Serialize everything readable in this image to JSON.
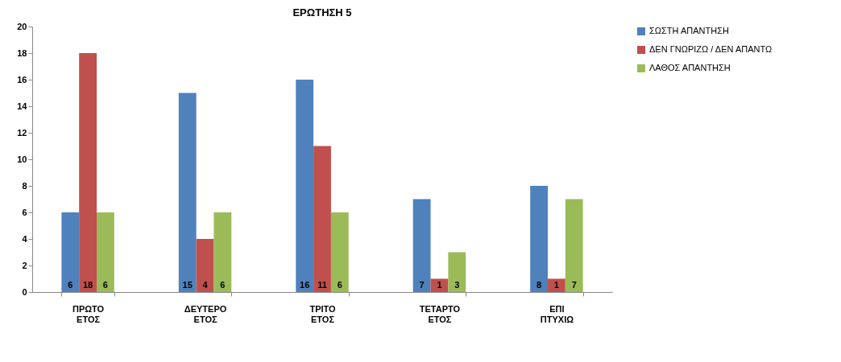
{
  "chart_data": {
    "type": "bar",
    "title": "ΕΡΩΤΗΣΗ 5",
    "categories": [
      "ΠΡΩΤΟ ΕΤΟΣ",
      "ΔΕΥΤΕΡΟ ΕΤΟΣ",
      "ΤΡΙΤΟ ΕΤΟΣ",
      "ΤΕΤΑΡΤΟ ΕΤΟΣ",
      "ΕΠΙ ΠΤΥΧΙΩ"
    ],
    "series": [
      {
        "name": "ΣΩΣΤΗ ΑΠΑΝΤΗΣΗ",
        "color": "#4f81bd",
        "values": [
          6,
          15,
          16,
          7,
          8
        ]
      },
      {
        "name": "ΔΕΝ ΓΝΩΡΙΖΩ / ΔΕΝ ΑΠΑΝΤΩ",
        "color": "#c0504d",
        "values": [
          18,
          4,
          11,
          1,
          1
        ]
      },
      {
        "name": "ΛΑΘΟΣ ΑΠΑΝΤΗΣΗ",
        "color": "#9bbb59",
        "values": [
          6,
          6,
          6,
          3,
          7
        ]
      }
    ],
    "ylim": [
      0,
      20
    ],
    "yticks": [
      0,
      2,
      4,
      6,
      8,
      10,
      12,
      14,
      16,
      18,
      20
    ],
    "grid": false,
    "legend": "right",
    "data_labels": true
  }
}
